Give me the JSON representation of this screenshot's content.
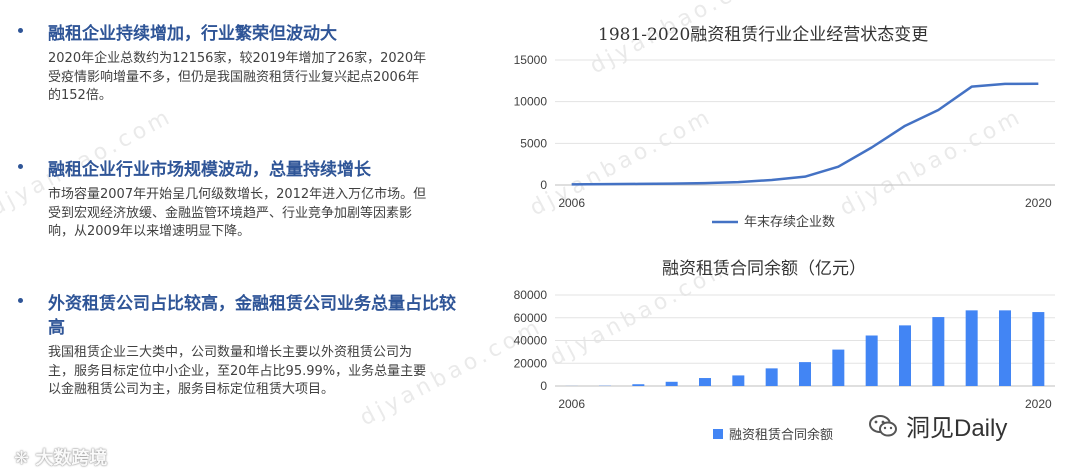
{
  "bullets": [
    {
      "title": "融租企业持续增加，行业繁荣但波动大",
      "body": "2020年企业总数约为12156家，较2019年增加了26家，2020年受疫情影响增量不多，但仍是我国融资租赁行业复兴起点2006年的152倍。"
    },
    {
      "title": "融租企业行业市场规模波动，总量持续增长",
      "body": "市场容量2007年开始呈几何级数增长，2012年进入万亿市场。但受到宏观经济放缓、金融监管环境趋严、行业竞争加剧等因素影响，从2009年以来增速明显下降。"
    },
    {
      "title": "外资租赁公司占比较高，金融租赁公司业务总量占比较高",
      "body": "我国租赁企业三大类中，公司数量和增长主要以外资租赁公司为主，服务目标定位中小企业，至20年占比95.99%，业务总量主要以金融租赁公司为主，服务目标定位租赁大项目。"
    }
  ],
  "watermark": "djyanbao.com",
  "logo_left": "大数跨境",
  "logo_right": "洞见Daily",
  "chart_data": [
    {
      "type": "line",
      "title": "1981-2020融资租赁行业企业经营状态变更",
      "x": [
        2006,
        2007,
        2008,
        2009,
        2010,
        2011,
        2012,
        2013,
        2014,
        2015,
        2016,
        2017,
        2018,
        2019,
        2020
      ],
      "x_tick_labels": [
        "2006",
        "2020"
      ],
      "series": [
        {
          "name": "年末存续企业数",
          "values": [
            80,
            100,
            130,
            160,
            220,
            350,
            600,
            1000,
            2200,
            4500,
            7100,
            9000,
            11800,
            12130,
            12156
          ]
        }
      ],
      "ylim": [
        0,
        15000
      ],
      "yticks": [
        0,
        5000,
        10000,
        15000
      ],
      "grid": true,
      "legend": "bottom",
      "color": "#4472c4"
    },
    {
      "type": "bar",
      "title": "融资租赁合同余额（亿元）",
      "x": [
        2006,
        2007,
        2008,
        2009,
        2010,
        2011,
        2012,
        2013,
        2014,
        2015,
        2016,
        2017,
        2018,
        2019,
        2020
      ],
      "x_tick_labels": [
        "2006",
        "2020"
      ],
      "series": [
        {
          "name": "融资租赁合同余额",
          "values": [
            80,
            240,
            1550,
            3700,
            7000,
            9300,
            15500,
            21000,
            32000,
            44400,
            53300,
            60600,
            66500,
            66500,
            65000
          ]
        }
      ],
      "ylim": [
        0,
        80000
      ],
      "yticks": [
        0,
        20000,
        40000,
        60000,
        80000
      ],
      "grid": true,
      "legend": "bottom",
      "color": "#4285f4"
    }
  ]
}
